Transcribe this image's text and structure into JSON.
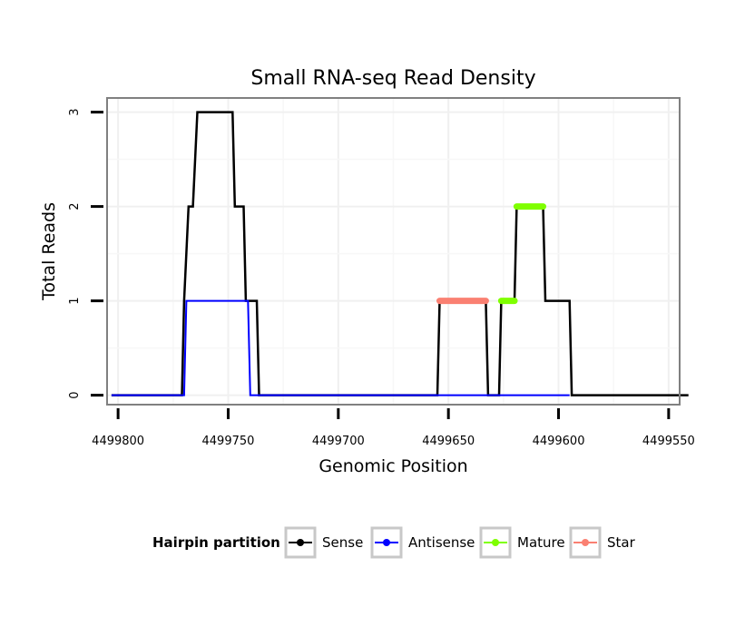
{
  "chart_data": {
    "type": "line",
    "title": "Small RNA-seq Read Density",
    "xlabel": "Genomic Position",
    "ylabel": "Total Reads",
    "x_reversed": true,
    "xlim": [
      4499805,
      4499545
    ],
    "ylim": [
      -0.1,
      3.15
    ],
    "xticks": [
      4499800,
      4499750,
      4499700,
      4499650,
      4499600,
      4499550
    ],
    "xtick_labels": [
      "4499800",
      "4499750",
      "4499700",
      "4499650",
      "4499600",
      "4499550"
    ],
    "yticks": [
      0,
      1,
      2,
      3
    ],
    "ytick_labels": [
      "0",
      "1",
      "2",
      "3"
    ],
    "grid": true,
    "legend": {
      "title": "Hairpin partition",
      "position": "bottom",
      "items": [
        {
          "name": "Sense",
          "color": "#000000"
        },
        {
          "name": "Antisense",
          "color": "#0000ff"
        },
        {
          "name": "Mature",
          "color": "#7fff00"
        },
        {
          "name": "Star",
          "color": "#fa8072"
        }
      ]
    },
    "series": [
      {
        "name": "Sense",
        "color": "#000000",
        "width": 2.5,
        "points": [
          [
            4499803,
            0
          ],
          [
            4499771,
            0
          ],
          [
            4499770,
            1
          ],
          [
            4499768,
            2
          ],
          [
            4499766,
            2
          ],
          [
            4499764,
            3
          ],
          [
            4499748,
            3
          ],
          [
            4499747,
            2
          ],
          [
            4499743,
            2
          ],
          [
            4499742,
            1
          ],
          [
            4499737,
            1
          ],
          [
            4499736,
            0
          ],
          [
            4499655,
            0
          ],
          [
            4499654,
            1
          ],
          [
            4499633,
            1
          ],
          [
            4499632,
            0
          ],
          [
            4499627,
            0
          ],
          [
            4499626,
            1
          ],
          [
            4499620,
            1
          ],
          [
            4499619,
            2
          ],
          [
            4499607,
            2
          ],
          [
            4499606,
            1
          ],
          [
            4499595,
            1
          ],
          [
            4499594,
            0
          ],
          [
            4499541,
            0
          ]
        ]
      },
      {
        "name": "Antisense",
        "color": "#0000ff",
        "width": 2,
        "points": [
          [
            4499803,
            0
          ],
          [
            4499770,
            0
          ],
          [
            4499769,
            1
          ],
          [
            4499741,
            1
          ],
          [
            4499740,
            0
          ],
          [
            4499595,
            0
          ]
        ]
      },
      {
        "name": "Star",
        "color": "#fa8072",
        "width": 7,
        "points": [
          [
            4499654,
            1
          ],
          [
            4499633,
            1
          ]
        ]
      },
      {
        "name": "Mature",
        "color": "#7fff00",
        "width": 7,
        "segments": [
          [
            [
              4499626,
              1
            ],
            [
              4499620,
              1
            ]
          ],
          [
            [
              4499619,
              2
            ],
            [
              4499607,
              2
            ]
          ]
        ]
      }
    ]
  }
}
